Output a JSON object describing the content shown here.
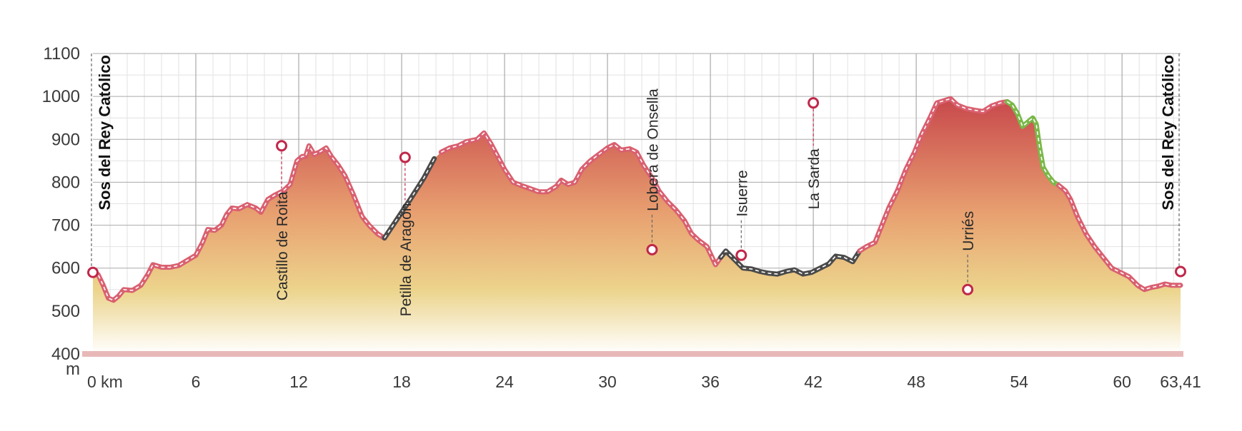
{
  "chart_data": {
    "type": "area",
    "title": "",
    "xlabel": "",
    "ylabel": "",
    "y_unit_label": "m",
    "x_unit_label": "km",
    "xlim": [
      0,
      63.41
    ],
    "ylim": [
      400,
      1100
    ],
    "x_ticks": [
      0,
      6,
      12,
      18,
      24,
      30,
      36,
      42,
      48,
      54,
      60,
      63.41
    ],
    "x_tick_labels": [
      "0",
      "6",
      "12",
      "18",
      "24",
      "30",
      "36",
      "42",
      "48",
      "54",
      "60",
      "63,41"
    ],
    "y_ticks": [
      400,
      500,
      600,
      700,
      800,
      900,
      1000,
      1100
    ],
    "y_tick_labels": [
      "400",
      "500",
      "600",
      "700",
      "800",
      "900",
      "1000",
      "1100"
    ],
    "colors": {
      "fill_top": "#c8484c",
      "fill_mid": "#e8c878",
      "fill_bottom": "#ffffff",
      "route_red": "#d96070",
      "route_dark": "#4a4a4a",
      "route_green": "#7ab848",
      "baseline": "#e8b8b8",
      "marker": "#c0284a",
      "grid_major": "#aaaaaa",
      "grid_minor": "#e2e2e2"
    },
    "profile": [
      [
        0,
        590
      ],
      [
        0.3,
        585
      ],
      [
        0.6,
        560
      ],
      [
        0.9,
        530
      ],
      [
        1.2,
        525
      ],
      [
        1.5,
        535
      ],
      [
        1.8,
        550
      ],
      [
        2.3,
        548
      ],
      [
        2.8,
        560
      ],
      [
        3.2,
        585
      ],
      [
        3.5,
        608
      ],
      [
        4,
        602
      ],
      [
        4.5,
        602
      ],
      [
        5,
        606
      ],
      [
        5.5,
        618
      ],
      [
        6,
        630
      ],
      [
        6.4,
        660
      ],
      [
        6.7,
        690
      ],
      [
        7.1,
        688
      ],
      [
        7.5,
        700
      ],
      [
        7.8,
        725
      ],
      [
        8.1,
        740
      ],
      [
        8.5,
        738
      ],
      [
        9,
        748
      ],
      [
        9.5,
        740
      ],
      [
        9.8,
        730
      ],
      [
        10.2,
        760
      ],
      [
        10.6,
        770
      ],
      [
        11.1,
        780
      ],
      [
        11.5,
        795
      ],
      [
        11.9,
        850
      ],
      [
        12.2,
        860
      ],
      [
        12.4,
        860
      ],
      [
        12.6,
        885
      ],
      [
        12.9,
        865
      ],
      [
        13.2,
        870
      ],
      [
        13.6,
        880
      ],
      [
        13.9,
        860
      ],
      [
        14.3,
        840
      ],
      [
        14.7,
        815
      ],
      [
        15.2,
        770
      ],
      [
        15.7,
        720
      ],
      [
        16.1,
        700
      ],
      [
        16.6,
        680
      ],
      [
        17,
        670
      ],
      [
        17.5,
        700
      ],
      [
        18.5,
        760
      ],
      [
        19.3,
        810
      ],
      [
        19.9,
        855
      ],
      [
        20.3,
        870
      ],
      [
        20.8,
        880
      ],
      [
        21.3,
        885
      ],
      [
        21.8,
        895
      ],
      [
        22.4,
        900
      ],
      [
        22.8,
        915
      ],
      [
        23.2,
        890
      ],
      [
        23.6,
        860
      ],
      [
        24,
        830
      ],
      [
        24.5,
        800
      ],
      [
        25,
        792
      ],
      [
        25.5,
        785
      ],
      [
        26,
        778
      ],
      [
        26.5,
        778
      ],
      [
        27,
        790
      ],
      [
        27.3,
        805
      ],
      [
        27.7,
        795
      ],
      [
        28.1,
        800
      ],
      [
        28.5,
        830
      ],
      [
        29,
        850
      ],
      [
        29.5,
        865
      ],
      [
        30,
        880
      ],
      [
        30.4,
        888
      ],
      [
        30.8,
        875
      ],
      [
        31.3,
        878
      ],
      [
        31.7,
        870
      ],
      [
        32.1,
        840
      ],
      [
        32.6,
        810
      ],
      [
        33,
        780
      ],
      [
        33.5,
        755
      ],
      [
        34,
        735
      ],
      [
        34.5,
        710
      ],
      [
        34.9,
        680
      ],
      [
        35.3,
        665
      ],
      [
        35.8,
        650
      ],
      [
        36.1,
        625
      ],
      [
        36.3,
        608
      ],
      [
        36.6,
        625
      ],
      [
        36.9,
        640
      ],
      [
        37.4,
        620
      ],
      [
        37.9,
        600
      ],
      [
        38.4,
        598
      ],
      [
        38.9,
        592
      ],
      [
        39.4,
        588
      ],
      [
        39.9,
        586
      ],
      [
        40.4,
        592
      ],
      [
        40.9,
        596
      ],
      [
        41.4,
        586
      ],
      [
        41.9,
        590
      ],
      [
        42.4,
        600
      ],
      [
        42.9,
        610
      ],
      [
        43.3,
        628
      ],
      [
        43.8,
        625
      ],
      [
        44.3,
        615
      ],
      [
        44.7,
        640
      ],
      [
        45.1,
        650
      ],
      [
        45.6,
        660
      ],
      [
        46,
        700
      ],
      [
        46.4,
        740
      ],
      [
        46.9,
        780
      ],
      [
        47.4,
        830
      ],
      [
        47.9,
        870
      ],
      [
        48.3,
        910
      ],
      [
        48.8,
        950
      ],
      [
        49.2,
        985
      ],
      [
        49.6,
        990
      ],
      [
        50,
        995
      ],
      [
        50.4,
        980
      ],
      [
        50.9,
        972
      ],
      [
        51.4,
        968
      ],
      [
        51.9,
        965
      ],
      [
        52.4,
        978
      ],
      [
        52.9,
        985
      ],
      [
        53.3,
        988
      ],
      [
        53.6,
        980
      ],
      [
        53.9,
        960
      ],
      [
        54.2,
        930
      ],
      [
        54.5,
        940
      ],
      [
        54.8,
        950
      ],
      [
        55,
        935
      ],
      [
        55.2,
        880
      ],
      [
        55.4,
        835
      ],
      [
        55.7,
        815
      ],
      [
        56,
        800
      ],
      [
        56.3,
        793
      ],
      [
        56.7,
        780
      ],
      [
        57,
        760
      ],
      [
        57.4,
        720
      ],
      [
        57.9,
        680
      ],
      [
        58.4,
        650
      ],
      [
        58.9,
        625
      ],
      [
        59.4,
        600
      ],
      [
        59.9,
        590
      ],
      [
        60.4,
        580
      ],
      [
        60.9,
        560
      ],
      [
        61.3,
        550
      ],
      [
        61.7,
        555
      ],
      [
        62.1,
        558
      ],
      [
        62.5,
        563
      ],
      [
        62.9,
        560
      ],
      [
        63.41,
        560
      ]
    ],
    "waypoints": [
      {
        "name": "Sos del Rey Católico",
        "x": 0,
        "y": 590,
        "bold": true
      },
      {
        "name": "Castillo de Roita",
        "x": 11,
        "y": 885,
        "bold": false
      },
      {
        "name": "Petilla de Aragón",
        "x": 18.2,
        "y": 858,
        "bold": false
      },
      {
        "name": "Lobera de Onsella",
        "x": 32.6,
        "y": 643,
        "bold": false
      },
      {
        "name": "Isuerre",
        "x": 37.8,
        "y": 630,
        "bold": false
      },
      {
        "name": "La Sarda",
        "x": 42,
        "y": 985,
        "bold": false
      },
      {
        "name": "Urriés",
        "x": 51,
        "y": 550,
        "bold": false
      },
      {
        "name": "Sos del Rey Católico",
        "x": 63.41,
        "y": 592,
        "bold": true
      }
    ]
  }
}
